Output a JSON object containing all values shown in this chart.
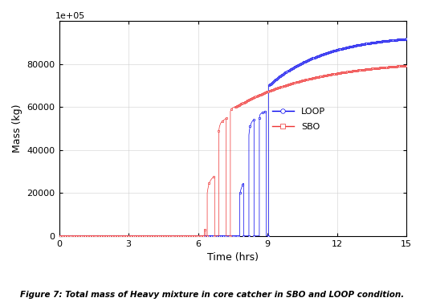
{
  "title": "Figure 7: Total mass of Heavy mixture in core catcher in SBO and LOOP condition.",
  "xlabel": "Time (hrs)",
  "ylabel": "Mass (kg)",
  "xlim": [
    0,
    15
  ],
  "ylim": [
    0,
    100000
  ],
  "xticks": [
    0,
    3,
    6,
    9,
    12,
    15
  ],
  "yticks": [
    0,
    20000,
    40000,
    60000,
    80000,
    100000
  ],
  "loop_color": "#0000EE",
  "sbo_color": "#EE3333",
  "background_color": "#ffffff",
  "fig_width": 5.28,
  "fig_height": 3.76,
  "dpi": 100
}
